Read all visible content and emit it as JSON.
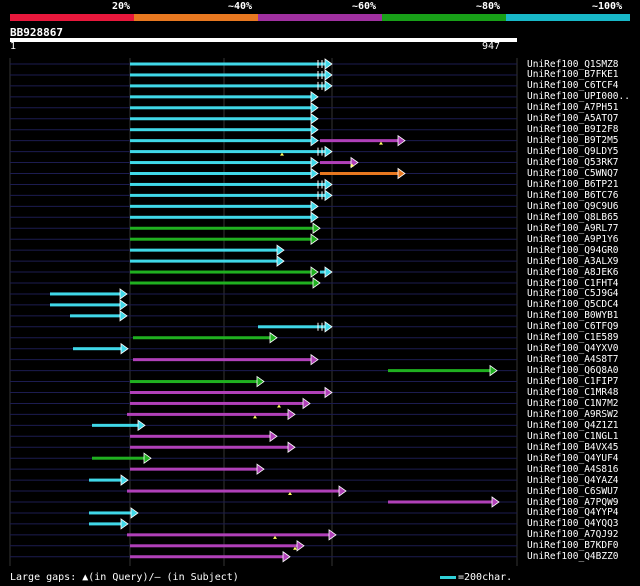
{
  "legend": {
    "labels": [
      "20%",
      "~40%",
      "~60%",
      "~80%",
      "~100%"
    ],
    "colors": [
      "#e8183c",
      "#e87820",
      "#a030a0",
      "#18a018",
      "#18b8c8"
    ]
  },
  "query": {
    "name": "BB928867",
    "start": "1",
    "end": "947"
  },
  "footer": {
    "text": "Large gaps: ▲(in Query)/– (in Subject)",
    "scale": "=200char."
  },
  "hits": [
    {
      "name": "UniRef100_Q1SMZ8",
      "c": "c",
      "s": 130,
      "e": 332,
      "tip": "r3"
    },
    {
      "name": "UniRef100_B7FKE1",
      "c": "c",
      "s": 130,
      "e": 332,
      "tip": "r3"
    },
    {
      "name": "UniRef100_C6TCF4",
      "c": "c",
      "s": 130,
      "e": 332,
      "tip": "r3"
    },
    {
      "name": "UniRef100_UPI000..",
      "c": "c",
      "s": 130,
      "e": 318,
      "tip": "r"
    },
    {
      "name": "UniRef100_A7PH51",
      "c": "c",
      "s": 130,
      "e": 318,
      "tip": "r"
    },
    {
      "name": "UniRef100_A5ATQ7",
      "c": "c",
      "s": 130,
      "e": 318,
      "tip": "r"
    },
    {
      "name": "UniRef100_B9I2F8",
      "c": "c",
      "s": 130,
      "e": 318,
      "tip": "r"
    },
    {
      "name": "UniRef100_B9T2M5",
      "c": "c",
      "s": 130,
      "e": 318,
      "tip": "r",
      "ext": {
        "c": "p",
        "s": 320,
        "e": 405,
        "tip": "r",
        "q": 381
      }
    },
    {
      "name": "UniRef100_Q9LDY5",
      "c": "c",
      "s": 130,
      "e": 332,
      "tip": "r3",
      "q": 282
    },
    {
      "name": "UniRef100_Q53RK7",
      "c": "c",
      "s": 130,
      "e": 318,
      "tip": "r",
      "ext": {
        "c": "p",
        "s": 320,
        "e": 358,
        "tip": "r",
        "q": 352
      }
    },
    {
      "name": "UniRef100_C5WNQ7",
      "c": "c",
      "s": 130,
      "e": 318,
      "tip": "r",
      "ext": {
        "c": "o",
        "s": 320,
        "e": 405,
        "tip": "r"
      }
    },
    {
      "name": "UniRef100_B6TP21",
      "c": "c",
      "s": 130,
      "e": 332,
      "tip": "r3"
    },
    {
      "name": "UniRef100_B6TC76",
      "c": "c",
      "s": 130,
      "e": 332,
      "tip": "r3"
    },
    {
      "name": "UniRef100_Q9C9U6",
      "c": "c",
      "s": 130,
      "e": 318,
      "tip": "r"
    },
    {
      "name": "UniRef100_Q8LB65",
      "c": "c",
      "s": 130,
      "e": 318,
      "tip": "r"
    },
    {
      "name": "UniRef100_A9RL77",
      "c": "g",
      "s": 130,
      "e": 320,
      "tip": "r"
    },
    {
      "name": "UniRef100_A9P1Y6",
      "c": "g",
      "s": 130,
      "e": 318,
      "tip": "r"
    },
    {
      "name": "UniRef100_Q94GR0",
      "c": "c",
      "s": 130,
      "e": 284,
      "tip": "r"
    },
    {
      "name": "UniRef100_A3ALX9",
      "c": "c",
      "s": 130,
      "e": 284,
      "tip": "r"
    },
    {
      "name": "UniRef100_A8JEK6",
      "c": "g",
      "s": 130,
      "e": 318,
      "tip": "r",
      "ext": {
        "c": "c",
        "s": 320,
        "e": 332,
        "tip": "r"
      }
    },
    {
      "name": "UniRef100_C1FHT4",
      "c": "g",
      "s": 130,
      "e": 320,
      "tip": "r"
    },
    {
      "name": "UniRef100_C5J9G4",
      "c": "c",
      "s": 50,
      "e": 127,
      "tip": "r"
    },
    {
      "name": "UniRef100_Q5CDC4",
      "c": "c",
      "s": 50,
      "e": 127,
      "tip": "r"
    },
    {
      "name": "UniRef100_B0WYB1",
      "c": "c",
      "s": 70,
      "e": 127,
      "tip": "r"
    },
    {
      "name": "UniRef100_C6TFQ9",
      "c": "c",
      "s": 258,
      "e": 332,
      "tip": "r3"
    },
    {
      "name": "UniRef100_C1E589",
      "c": "g",
      "s": 133,
      "e": 277,
      "tip": "r"
    },
    {
      "name": "UniRef100_Q4YXV0",
      "c": "c",
      "s": 73,
      "e": 128,
      "tip": "r"
    },
    {
      "name": "UniRef100_A4S8T7",
      "c": "p",
      "s": 133,
      "e": 318,
      "tip": "r"
    },
    {
      "name": "UniRef100_Q6Q8A0",
      "c": "g",
      "s": 388,
      "e": 497,
      "tip": "r"
    },
    {
      "name": "UniRef100_C1FIP7",
      "c": "g",
      "s": 130,
      "e": 264,
      "tip": "r"
    },
    {
      "name": "UniRef100_C1MR48",
      "c": "p",
      "s": 130,
      "e": 332,
      "tip": "r"
    },
    {
      "name": "UniRef100_C1N7M2",
      "c": "p",
      "s": 130,
      "e": 310,
      "tip": "r",
      "q": 279
    },
    {
      "name": "UniRef100_A9RSW2",
      "c": "p",
      "s": 127,
      "e": 295,
      "tip": "r",
      "q": 255
    },
    {
      "name": "UniRef100_Q4Z1Z1",
      "c": "c",
      "s": 92,
      "e": 145,
      "tip": "r"
    },
    {
      "name": "UniRef100_C1NGL1",
      "c": "p",
      "s": 130,
      "e": 277,
      "tip": "r"
    },
    {
      "name": "UniRef100_B4VX45",
      "c": "p",
      "s": 130,
      "e": 295,
      "tip": "r"
    },
    {
      "name": "UniRef100_Q4YUF4",
      "c": "g",
      "s": 92,
      "e": 151,
      "tip": "r"
    },
    {
      "name": "UniRef100_A4S816",
      "c": "p",
      "s": 130,
      "e": 264,
      "tip": "r"
    },
    {
      "name": "UniRef100_Q4YAZ4",
      "c": "c",
      "s": 89,
      "e": 128,
      "tip": "r"
    },
    {
      "name": "UniRef100_C6SWU7",
      "c": "p",
      "s": 127,
      "e": 346,
      "tip": "r",
      "q": 290
    },
    {
      "name": "UniRef100_A7PQW9",
      "c": "p",
      "s": 388,
      "e": 499,
      "tip": "r"
    },
    {
      "name": "UniRef100_Q4YYP4",
      "c": "c",
      "s": 89,
      "e": 138,
      "tip": "r"
    },
    {
      "name": "UniRef100_Q4YQQ3",
      "c": "c",
      "s": 89,
      "e": 128,
      "tip": "r"
    },
    {
      "name": "UniRef100_A7QJ92",
      "c": "p",
      "s": 127,
      "e": 336,
      "tip": "r",
      "q": 275
    },
    {
      "name": "UniRef100_B7KDF0",
      "c": "p",
      "s": 130,
      "e": 304,
      "tip": "r",
      "q": 295
    },
    {
      "name": "UniRef100_Q4BZZ0",
      "c": "p",
      "s": 130,
      "e": 290,
      "tip": "r"
    }
  ]
}
